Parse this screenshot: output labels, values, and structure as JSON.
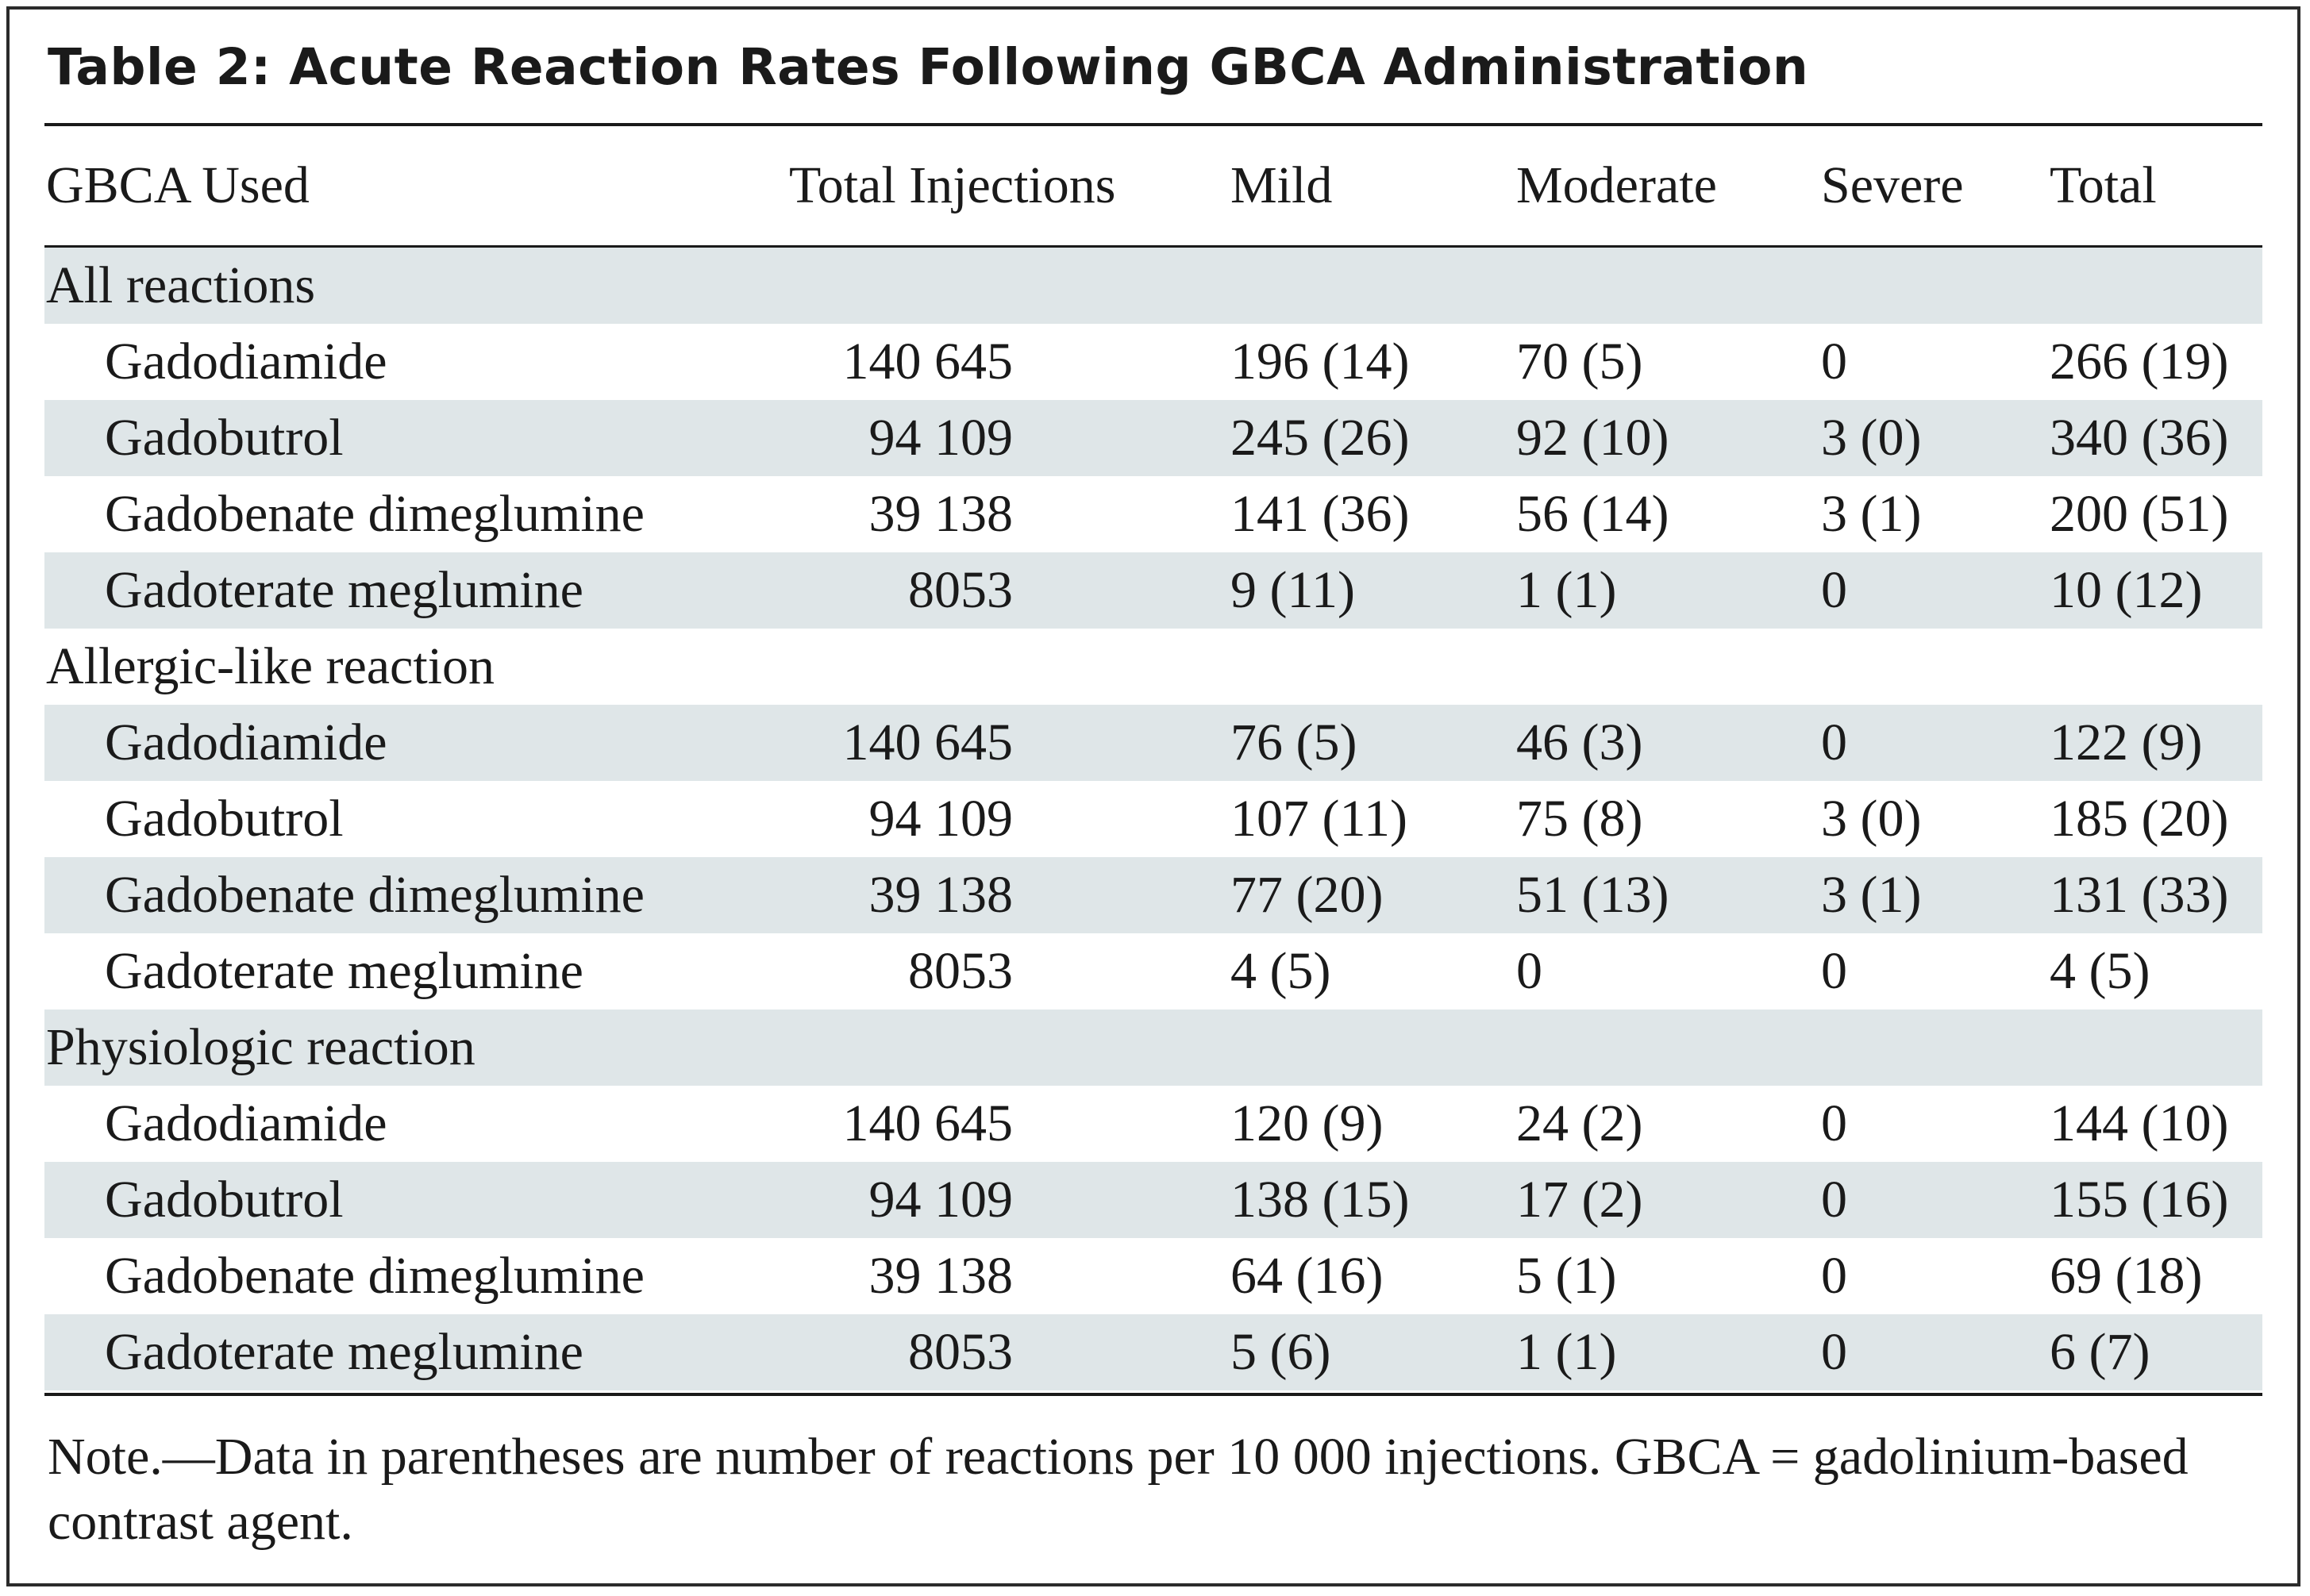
{
  "title": "Table 2: Acute Reaction Rates Following GBCA Administration",
  "columns": [
    "GBCA Used",
    "Total Injections",
    "Mild",
    "Moderate",
    "Severe",
    "Total"
  ],
  "sections": [
    {
      "label": "All reactions",
      "rows": [
        [
          "Gadodiamide",
          "140 645",
          "196 (14)",
          "70 (5)",
          "0",
          "266 (19)"
        ],
        [
          "Gadobutrol",
          "94 109",
          "245 (26)",
          "92 (10)",
          "3 (0)",
          "340 (36)"
        ],
        [
          "Gadobenate dimeglumine",
          "39 138",
          "141 (36)",
          "56 (14)",
          "3 (1)",
          "200 (51)"
        ],
        [
          "Gadoterate meglumine",
          "8053",
          "9 (11)",
          "1 (1)",
          "0",
          "10 (12)"
        ]
      ]
    },
    {
      "label": "Allergic-like reaction",
      "rows": [
        [
          "Gadodiamide",
          "140 645",
          "76 (5)",
          "46 (3)",
          "0",
          "122 (9)"
        ],
        [
          "Gadobutrol",
          "94 109",
          "107 (11)",
          "75 (8)",
          "3 (0)",
          "185 (20)"
        ],
        [
          "Gadobenate dimeglumine",
          "39 138",
          "77 (20)",
          "51 (13)",
          "3 (1)",
          "131 (33)"
        ],
        [
          "Gadoterate meglumine",
          "8053",
          "4 (5)",
          "0",
          "0",
          "4 (5)"
        ]
      ]
    },
    {
      "label": "Physiologic reaction",
      "rows": [
        [
          "Gadodiamide",
          "140 645",
          "120 (9)",
          "24 (2)",
          "0",
          "144 (10)"
        ],
        [
          "Gadobutrol",
          "94 109",
          "138 (15)",
          "17 (2)",
          "0",
          "155 (16)"
        ],
        [
          "Gadobenate dimeglumine",
          "39 138",
          "64 (16)",
          "5 (1)",
          "0",
          "69 (18)"
        ],
        [
          "Gadoterate meglumine",
          "8053",
          "5 (6)",
          "1 (1)",
          "0",
          "6 (7)"
        ]
      ]
    }
  ],
  "note": "Note.—Data in parentheses are number of reactions per 10 000 injections. GBCA = gadolinium-based contrast agent.",
  "colors": {
    "shade": "#dfe6e8",
    "text": "#1a1a1a",
    "rule": "#1a1a1a"
  }
}
